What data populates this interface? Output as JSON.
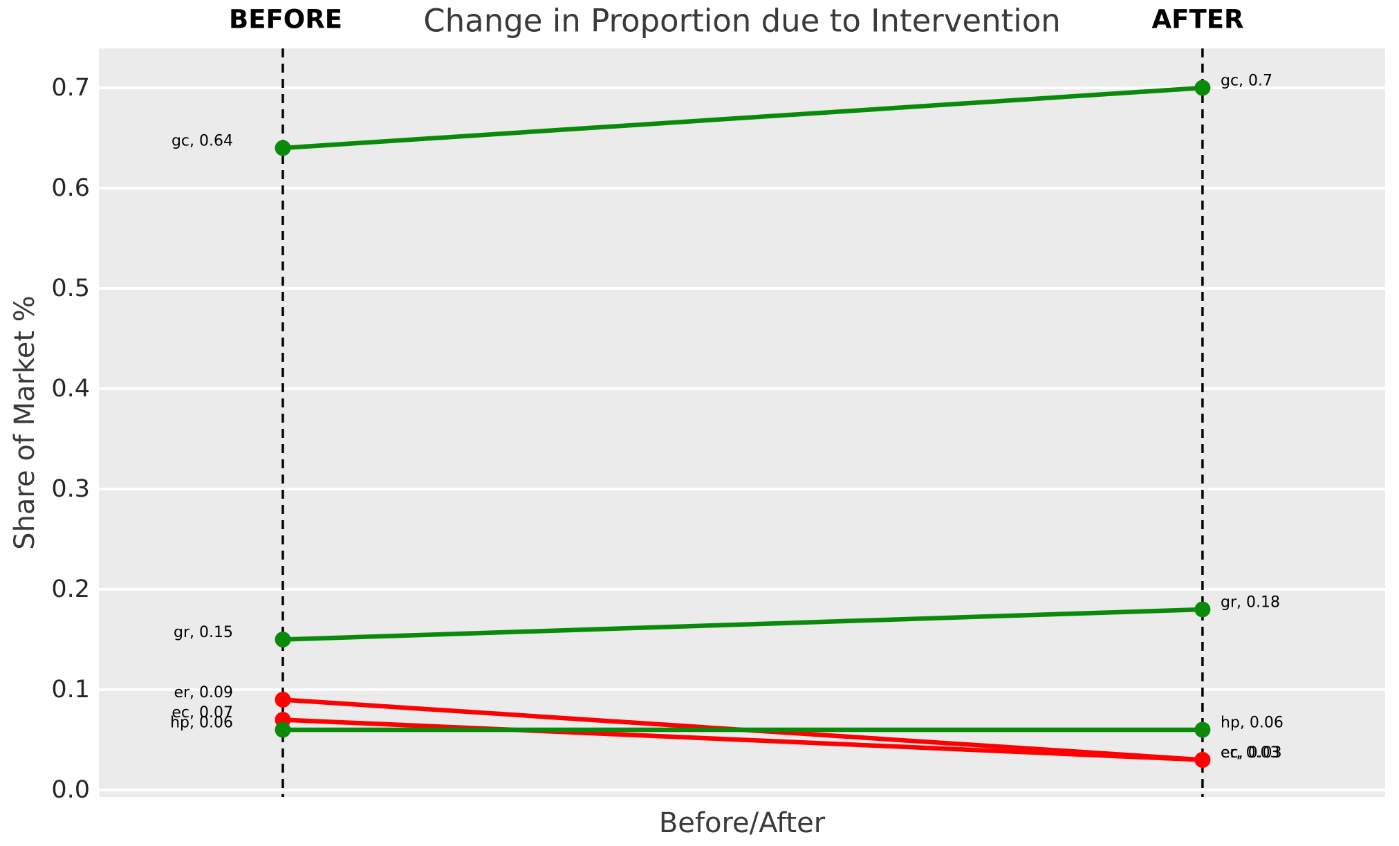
{
  "title": "Change in Proportion due to Intervention",
  "column_headers": {
    "before": "BEFORE",
    "after": "AFTER"
  },
  "axes": {
    "x_label": "Before/After",
    "y_label": "Share of Market %",
    "y_tick_labels": [
      "0.0",
      "0.1",
      "0.2",
      "0.3",
      "0.4",
      "0.5",
      "0.6",
      "0.7"
    ]
  },
  "colors": {
    "increase_green": "#0a8a0a",
    "decrease_red": "#ff0000",
    "plot_background": "#ebebeb",
    "gridline": "#ffffff",
    "dashed_axis": "#000000",
    "tick_text": "#262626",
    "label_text": "#000000"
  },
  "chart_data": {
    "type": "line",
    "subtype": "slopegraph",
    "title": "Change in Proportion due to Intervention",
    "xlabel": "Before/After",
    "ylabel": "Share of Market %",
    "categories": [
      "BEFORE",
      "AFTER"
    ],
    "series": [
      {
        "name": "gc",
        "values": [
          0.64,
          0.7
        ],
        "color": "#0a8a0a",
        "direction": "increase",
        "label_before": "gc, 0.64",
        "label_after": "gc, 0.7"
      },
      {
        "name": "gr",
        "values": [
          0.15,
          0.18
        ],
        "color": "#0a8a0a",
        "direction": "increase",
        "label_before": "gr, 0.15",
        "label_after": "gr, 0.18"
      },
      {
        "name": "er",
        "values": [
          0.09,
          0.03
        ],
        "color": "#ff0000",
        "direction": "decrease",
        "label_before": "er, 0.09",
        "label_after": "er, 0.03"
      },
      {
        "name": "ec",
        "values": [
          0.07,
          0.03
        ],
        "color": "#ff0000",
        "direction": "decrease",
        "label_before": "ec, 0.07",
        "label_after": "ec, 0.03"
      },
      {
        "name": "hp",
        "values": [
          0.06,
          0.06
        ],
        "color": "#0a8a0a",
        "direction": "no_change",
        "label_before": "hp, 0.06",
        "label_after": "hp, 0.06"
      }
    ],
    "yticks": [
      0.0,
      0.1,
      0.2,
      0.3,
      0.4,
      0.5,
      0.6,
      0.7
    ],
    "ylim": [
      -0.0069,
      0.7393
    ],
    "x_positions_frac": {
      "before": 0.143,
      "after": 0.858
    },
    "grid": true,
    "legend": false
  }
}
